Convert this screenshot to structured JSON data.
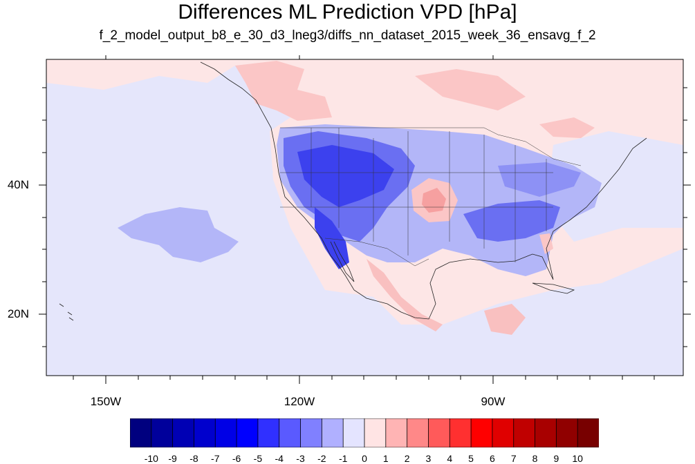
{
  "title": "Differences ML Prediction VPD [hPa]",
  "subtitle": "f_2_model_output_b8_e_30_d3_lneg3/diffs_nn_dataset_2015_week_36_ensavg_f_2",
  "axes": {
    "lat_labels": [
      "40N",
      "20N"
    ],
    "lon_labels": [
      "150W",
      "120W",
      "90W"
    ]
  },
  "colorbar": {
    "labels": [
      "-10",
      "-9",
      "-8",
      "-7",
      "-6",
      "-5",
      "-4",
      "-3",
      "-2",
      "-1",
      "0",
      "1",
      "2",
      "3",
      "4",
      "5",
      "6",
      "7",
      "8",
      "9",
      "10"
    ],
    "colors": [
      "#00007f",
      "#00009b",
      "#0000b4",
      "#0000cd",
      "#0000e6",
      "#0000ff",
      "#3030ff",
      "#5a5aff",
      "#8080ff",
      "#b0b0ff",
      "#e4e4ff",
      "#ffe4e4",
      "#ffb4b4",
      "#ff8888",
      "#ff5a5a",
      "#ff3030",
      "#ff0000",
      "#e00000",
      "#c00000",
      "#a80000",
      "#900000",
      "#780000"
    ]
  }
}
